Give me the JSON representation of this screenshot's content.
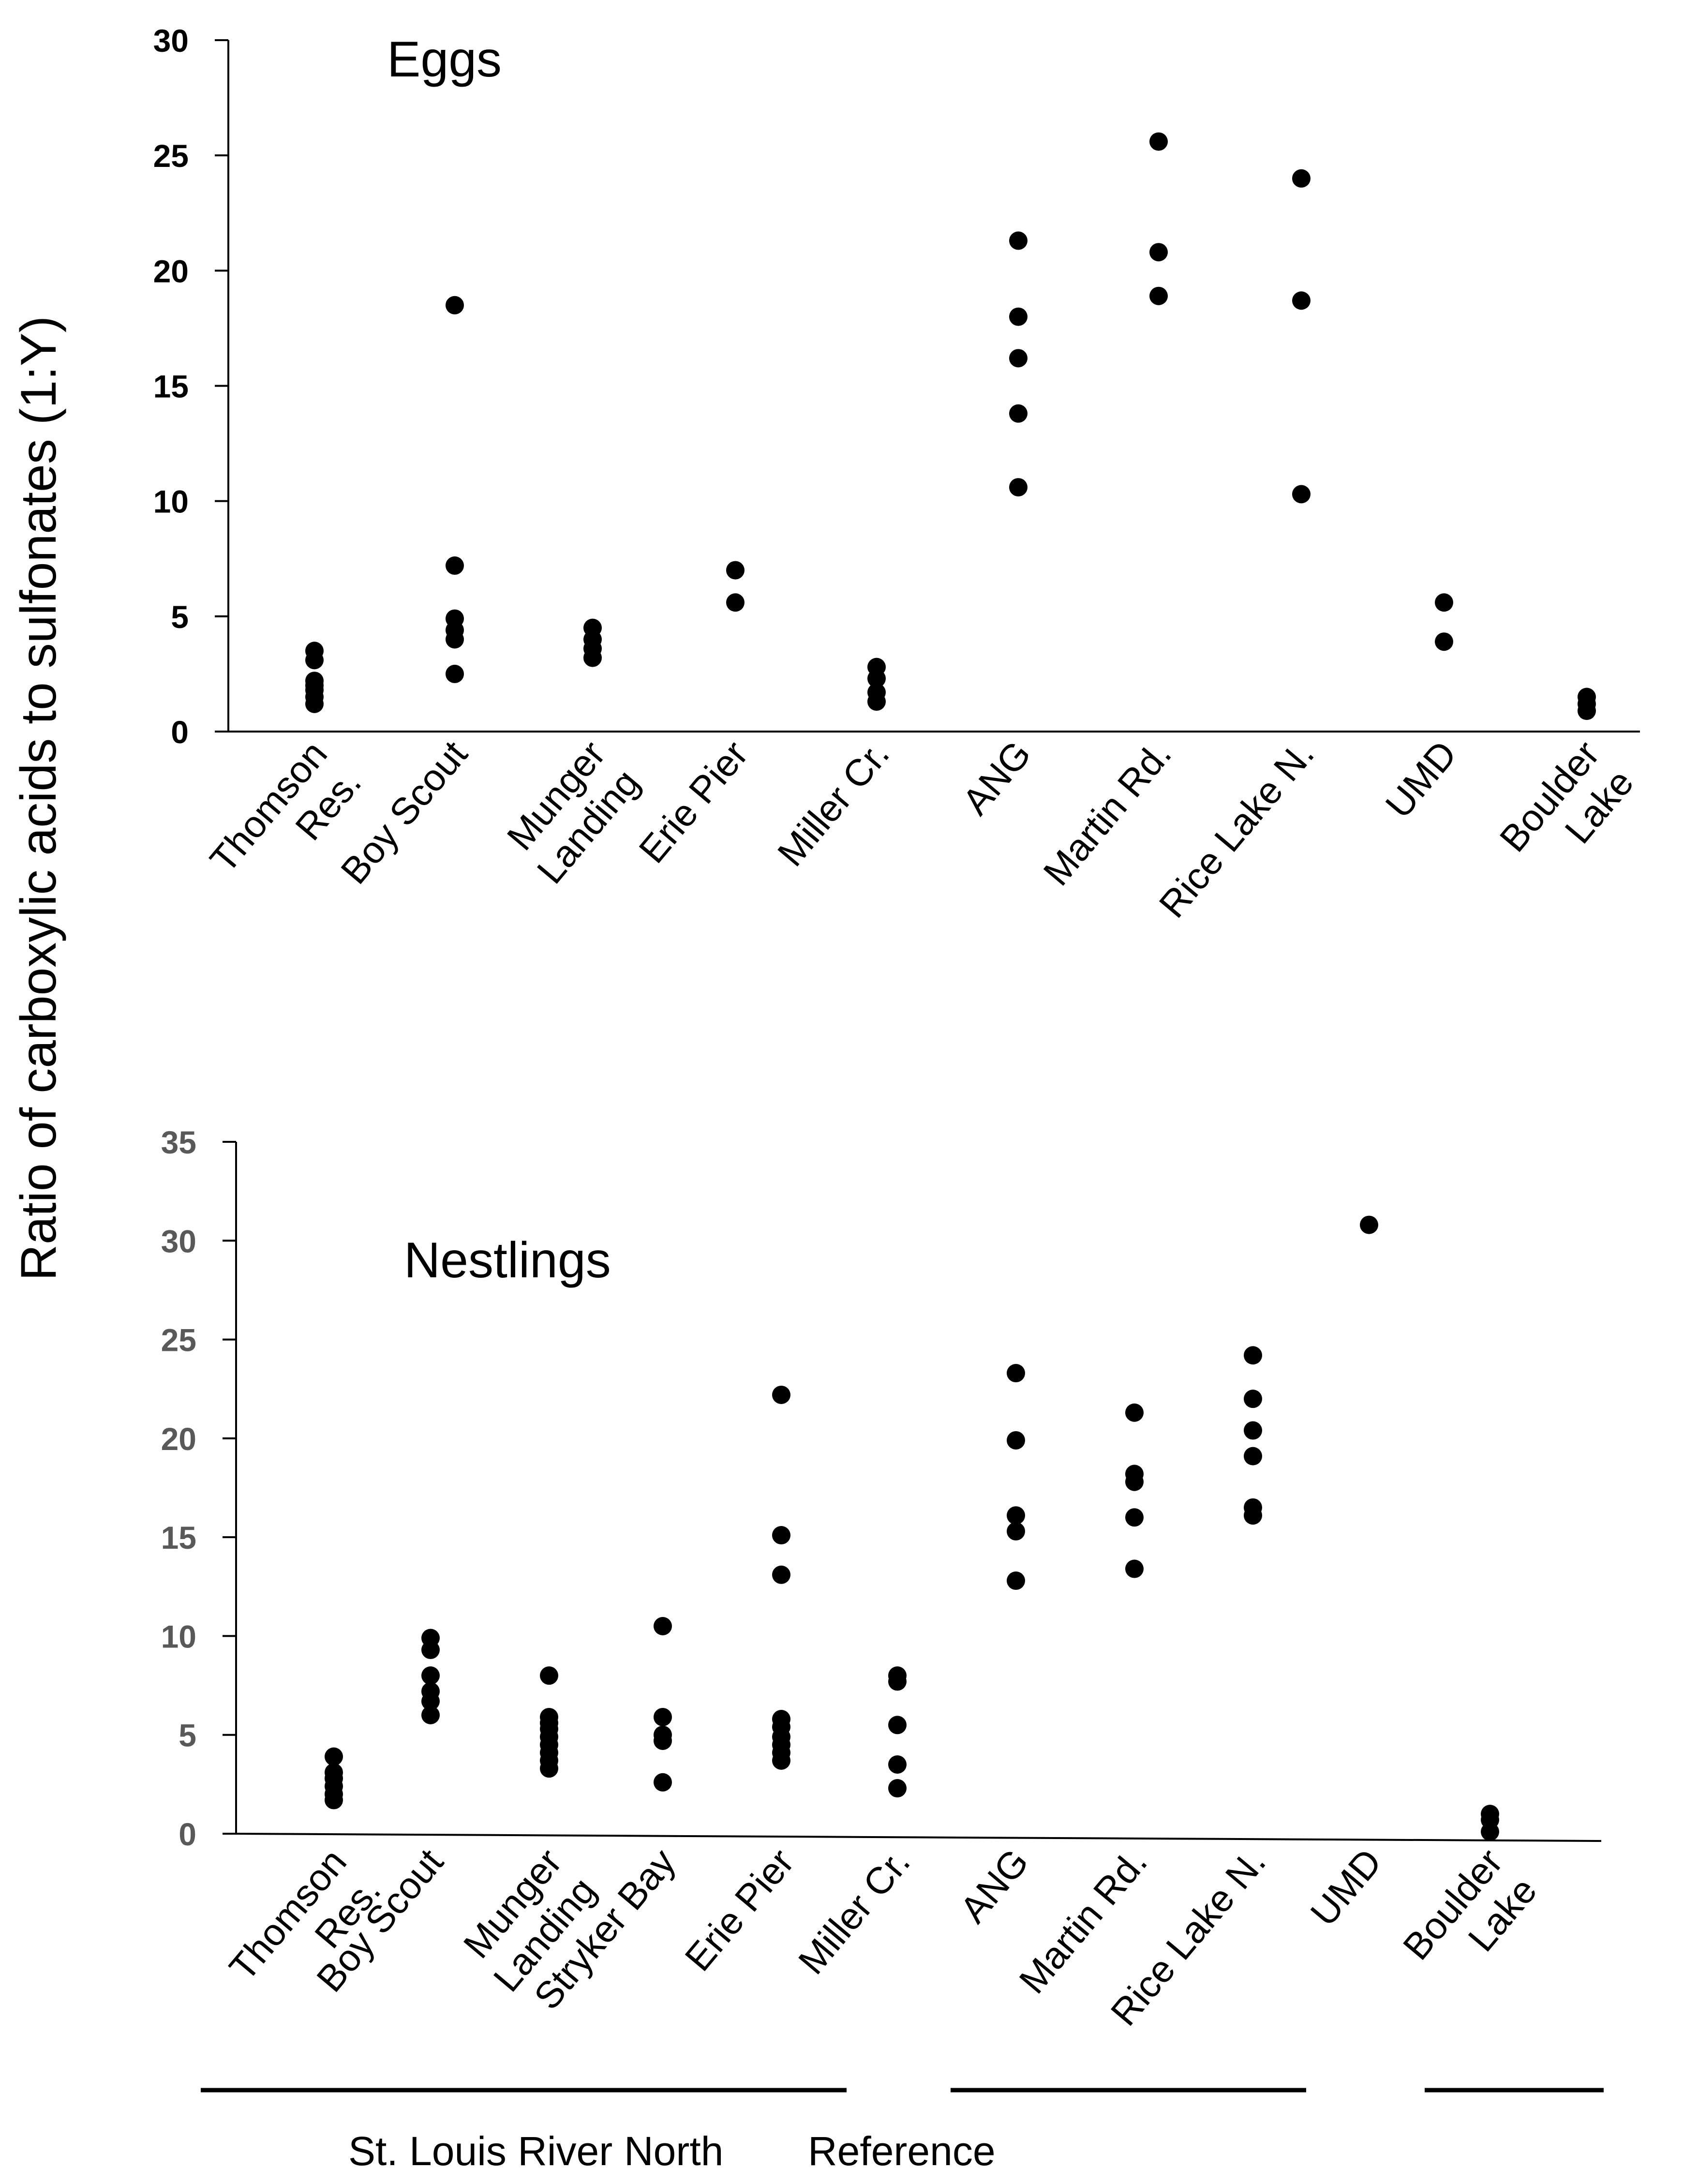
{
  "ylabel": "Ratio of carboxylic acids to sulfonates (1:Y)",
  "chart_data": [
    {
      "type": "scatter",
      "title": "Eggs",
      "ylim": [
        0,
        30
      ],
      "yticks": [
        0,
        5,
        10,
        15,
        20,
        25,
        30
      ],
      "tick_color": "#000000",
      "categories": [
        {
          "lines": [
            "Thomson",
            "Res."
          ],
          "values": [
            1.2,
            1.5,
            1.8,
            2.0,
            2.2,
            3.1,
            3.5
          ]
        },
        {
          "lines": [
            "Boy Scout"
          ],
          "values": [
            2.5,
            4.0,
            4.4,
            4.9,
            7.2,
            18.5
          ]
        },
        {
          "lines": [
            "Munger",
            "Landing"
          ],
          "values": [
            3.2,
            3.6,
            4.0,
            4.5
          ]
        },
        {
          "lines": [
            "Erie Pier"
          ],
          "values": [
            5.6,
            7.0
          ]
        },
        {
          "lines": [
            "Miller Cr."
          ],
          "values": [
            1.3,
            1.7,
            2.3,
            2.8
          ]
        },
        {
          "lines": [
            "ANG"
          ],
          "values": [
            10.6,
            13.8,
            16.2,
            18.0,
            21.3
          ]
        },
        {
          "lines": [
            "Martin Rd."
          ],
          "values": [
            18.9,
            20.8,
            25.6
          ]
        },
        {
          "lines": [
            "Rice Lake N."
          ],
          "values": [
            10.3,
            18.7,
            24.0
          ]
        },
        {
          "lines": [
            "UMD"
          ],
          "values": [
            3.9,
            5.6
          ]
        },
        {
          "lines": [
            "Boulder",
            "Lake"
          ],
          "values": [
            0.9,
            1.2,
            1.5
          ]
        }
      ]
    },
    {
      "type": "scatter",
      "title": "Nestlings",
      "ylim": [
        0,
        35
      ],
      "yticks": [
        0,
        5,
        10,
        15,
        20,
        25,
        30,
        35
      ],
      "tick_color": "#595959",
      "categories": [
        {
          "lines": [
            "Thomson",
            "Res."
          ],
          "values": [
            1.7,
            2.0,
            2.4,
            2.8,
            3.1,
            3.9
          ]
        },
        {
          "lines": [
            "Boy Scout"
          ],
          "values": [
            6.0,
            6.7,
            7.2,
            8.0,
            9.3,
            9.9
          ]
        },
        {
          "lines": [
            "Munger",
            "Landing"
          ],
          "values": [
            3.3,
            3.7,
            4.1,
            4.5,
            4.9,
            5.3,
            5.6,
            5.9,
            8.0
          ]
        },
        {
          "lines": [
            "Stryker Bay"
          ],
          "values": [
            2.6,
            4.7,
            5.0,
            5.9,
            10.5
          ]
        },
        {
          "lines": [
            "Erie Pier"
          ],
          "values": [
            3.7,
            4.1,
            4.5,
            4.9,
            5.4,
            5.8,
            13.1,
            15.1,
            22.2
          ]
        },
        {
          "lines": [
            "Miller Cr."
          ],
          "values": [
            2.3,
            3.5,
            5.5,
            7.7,
            8.0
          ]
        },
        {
          "lines": [
            "ANG"
          ],
          "values": [
            12.8,
            15.3,
            16.1,
            19.9,
            23.3
          ]
        },
        {
          "lines": [
            "Martin Rd."
          ],
          "values": [
            13.4,
            16.0,
            17.8,
            18.2,
            21.3
          ]
        },
        {
          "lines": [
            "Rice Lake N."
          ],
          "values": [
            16.1,
            16.5,
            19.1,
            20.4,
            22.0,
            24.2
          ]
        },
        {
          "lines": [
            "UMD"
          ],
          "values": [
            30.8
          ]
        },
        {
          "lines": [
            "Boulder",
            "Lake"
          ],
          "values": [
            0.1,
            0.7,
            1.0
          ]
        }
      ]
    }
  ],
  "groups": [
    {
      "label": "St. Louis River"
    },
    {
      "label": "North"
    },
    {
      "label": "Reference"
    }
  ]
}
